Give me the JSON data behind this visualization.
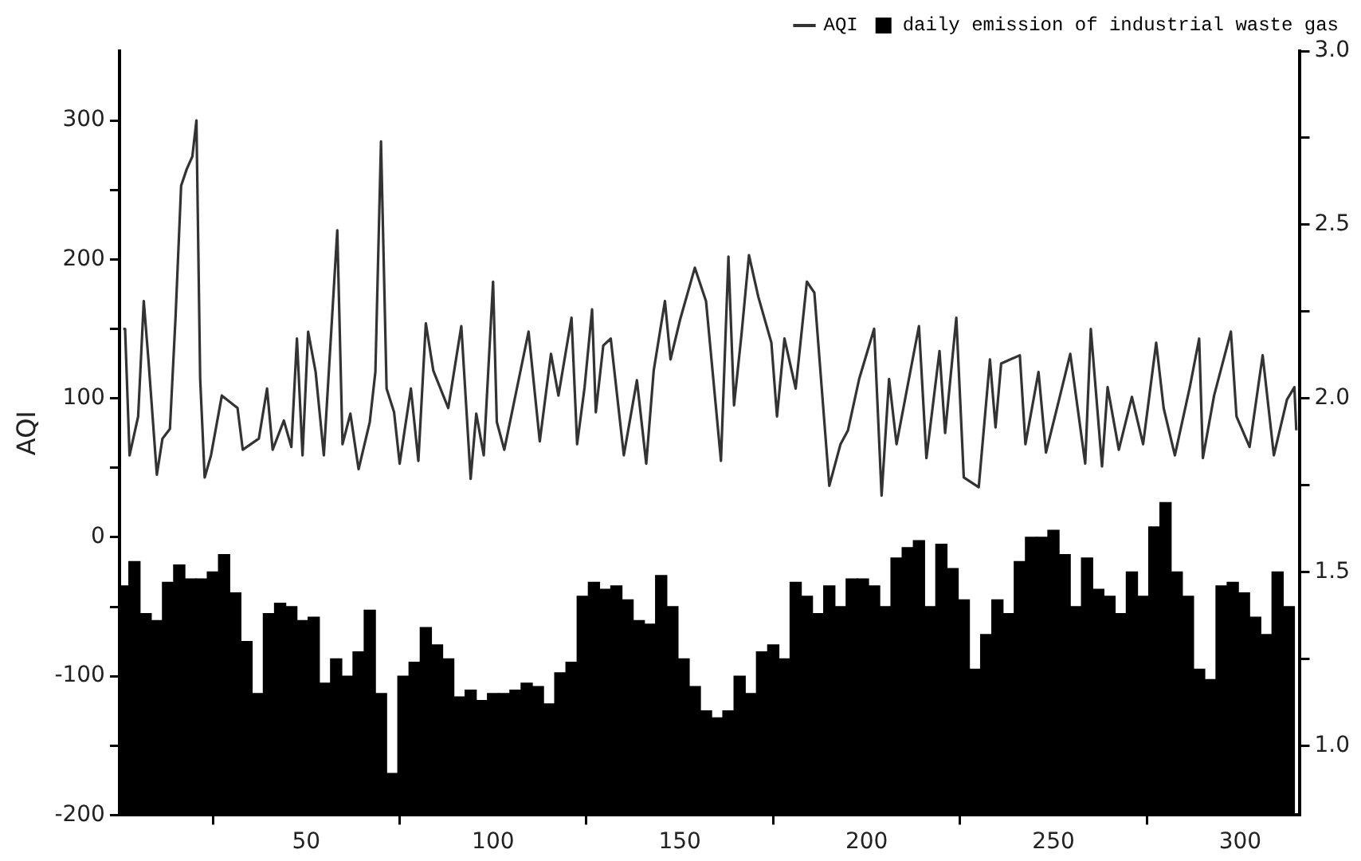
{
  "chart_data": {
    "type": "line",
    "ylabel": "AQI",
    "legend": "top right",
    "grid": false,
    "xlim": [
      0,
      316
    ],
    "xticks": [
      50,
      100,
      150,
      200,
      250,
      300
    ],
    "ylim": [
      -200,
      350
    ],
    "yticks": [
      -200,
      {
        "value": -150,
        "label": null
      },
      -100,
      {
        "value": -50,
        "label": null
      },
      0,
      {
        "value": 50,
        "label": null
      },
      100,
      {
        "value": 150,
        "label": null
      },
      200,
      {
        "value": 250,
        "label": null
      },
      300
    ],
    "y2lim": [
      0.8,
      3.0
    ],
    "y2ticks": [
      {
        "value": 1,
        "label": "1.0"
      },
      {
        "value": 1.25,
        "label": null
      },
      {
        "value": 1.5,
        "label": "1.5"
      },
      {
        "value": 1.75,
        "label": null
      },
      {
        "value": 2,
        "label": "2.0"
      },
      {
        "value": 2.25,
        "label": null
      },
      {
        "value": 2.5,
        "label": "2.5"
      },
      {
        "value": 2.75,
        "label": null
      },
      {
        "value": 3,
        "label": "3.0"
      }
    ],
    "series": [
      {
        "name": "AQI",
        "color": "#333333",
        "x": [
          1,
          1.5,
          2.7,
          5,
          6.5,
          7.8,
          10,
          11.5,
          13.5,
          15,
          16.5,
          18,
          19.5,
          20.6,
          21.6,
          22.8,
          24.5,
          27.4,
          31.6,
          33,
          37.3,
          39.5,
          41,
          44,
          46,
          47.5,
          49,
          50.5,
          52.5,
          54.7,
          58.3,
          59.7,
          61.8,
          64,
          67,
          68.5,
          70,
          71.5,
          73.5,
          75,
          78,
          80,
          82,
          84,
          88,
          91.5,
          94,
          95.5,
          97.5,
          100,
          101,
          103,
          109.5,
          112.5,
          115.5,
          117.5,
          121,
          122.5,
          124.5,
          126.5,
          127.5,
          129.5,
          131.5,
          135,
          138.5,
          141,
          143,
          146,
          147.5,
          150,
          154,
          157,
          161,
          163,
          164.5,
          166.5,
          168.5,
          171,
          174.5,
          176,
          178,
          181,
          184,
          186,
          190,
          193,
          195,
          198,
          202,
          204,
          206,
          208,
          214,
          216,
          219.5,
          221,
          224,
          226,
          230,
          233,
          234.5,
          236,
          241,
          242.5,
          246,
          248,
          251.5,
          254.5,
          258.5,
          260,
          263,
          264.5,
          267.5,
          271,
          274,
          277.5,
          279.5,
          282.5,
          286.5,
          289,
          290,
          293,
          297.5,
          299,
          302.5,
          306,
          309,
          312.5,
          314.5,
          315
        ],
        "values": [
          150,
          150,
          59,
          87,
          170,
          126,
          45,
          71,
          78,
          158,
          253,
          265,
          274,
          300,
          114,
          43,
          59,
          102,
          93,
          63,
          71,
          107,
          63,
          84,
          65,
          143,
          59,
          148,
          119,
          59,
          221,
          67,
          89,
          49,
          83,
          119,
          285,
          107,
          90,
          53,
          107,
          55,
          154,
          120,
          93,
          152,
          42,
          89,
          59,
          184,
          83,
          63,
          148,
          69,
          132,
          102,
          158,
          67,
          108,
          164,
          90,
          138,
          143,
          59,
          113,
          53,
          120,
          170,
          128,
          156,
          194,
          170,
          55,
          202,
          95,
          146,
          203,
          173,
          140,
          87,
          143,
          107,
          184,
          176,
          37,
          67,
          77,
          114,
          150,
          30,
          114,
          67,
          152,
          57,
          134,
          75,
          158,
          43,
          36,
          128,
          79,
          125,
          131,
          67,
          119,
          61,
          99,
          132,
          53,
          150,
          51,
          108,
          63,
          101,
          67,
          140,
          93,
          59,
          108,
          143,
          57,
          102,
          148,
          87,
          65,
          131,
          59,
          99,
          108,
          77
        ]
      },
      {
        "name": "daily emission of industrial waste gas",
        "type": "bar",
        "axis": "y2",
        "color": "#000000",
        "x": [
          1,
          4,
          7,
          10,
          13,
          16,
          19,
          22,
          25,
          28,
          31,
          34,
          37,
          40,
          43,
          46,
          49,
          52,
          55,
          58,
          61,
          64,
          67,
          70,
          73,
          76,
          79,
          82,
          85,
          88,
          91,
          94,
          97,
          100,
          103,
          106,
          109,
          112,
          115,
          118,
          121,
          124,
          127,
          130,
          133,
          136,
          139,
          142,
          145,
          148,
          151,
          154,
          157,
          160,
          163,
          166,
          169,
          172,
          175,
          178,
          181,
          184,
          187,
          190,
          193,
          196,
          199,
          202,
          205,
          208,
          211,
          214,
          217,
          220,
          223,
          226,
          229,
          232,
          235,
          238,
          241,
          244,
          247,
          250,
          253,
          256,
          259,
          262,
          265,
          268,
          271,
          274,
          277,
          280,
          283,
          286,
          289,
          292,
          295,
          298,
          301,
          304,
          307,
          310,
          313
        ],
        "values": [
          1.46,
          1.53,
          1.38,
          1.36,
          1.47,
          1.52,
          1.48,
          1.48,
          1.5,
          1.55,
          1.44,
          1.3,
          1.15,
          1.38,
          1.41,
          1.4,
          1.36,
          1.37,
          1.18,
          1.25,
          1.2,
          1.27,
          1.39,
          1.15,
          0.92,
          1.2,
          1.24,
          1.34,
          1.29,
          1.25,
          1.14,
          1.16,
          1.13,
          1.15,
          1.15,
          1.16,
          1.18,
          1.17,
          1.12,
          1.21,
          1.24,
          1.43,
          1.47,
          1.45,
          1.46,
          1.42,
          1.36,
          1.35,
          1.49,
          1.4,
          1.25,
          1.17,
          1.1,
          1.08,
          1.1,
          1.2,
          1.15,
          1.27,
          1.29,
          1.25,
          1.47,
          1.43,
          1.38,
          1.46,
          1.4,
          1.48,
          1.48,
          1.46,
          1.4,
          1.54,
          1.57,
          1.59,
          1.4,
          1.58,
          1.51,
          1.42,
          1.22,
          1.32,
          1.42,
          1.38,
          1.53,
          1.6,
          1.6,
          1.62,
          1.55,
          1.4,
          1.54,
          1.45,
          1.43,
          1.38,
          1.5,
          1.43,
          1.63,
          1.7,
          1.5,
          1.43,
          1.22,
          1.19,
          1.46,
          1.47,
          1.44,
          1.37,
          1.32,
          1.5,
          1.4
        ]
      }
    ]
  }
}
